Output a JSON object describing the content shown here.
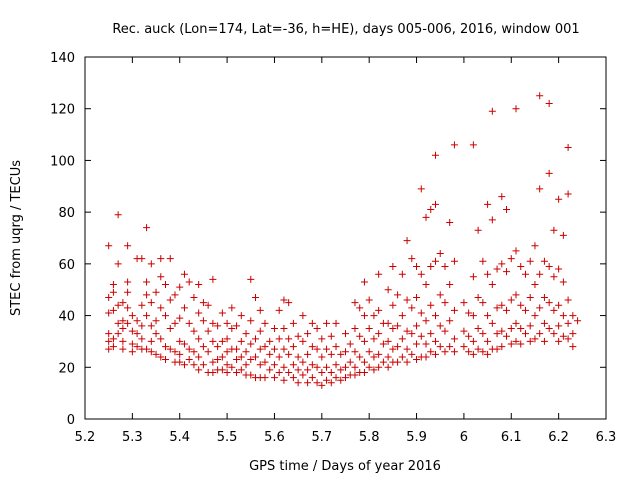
{
  "chart_data": {
    "type": "scatter",
    "title": "Rec. auck (Lon=174, Lat=-36, h=HE), days 005-006, 2016, window 001",
    "xlabel": "GPS time / Days of year 2016",
    "ylabel": "STEC from uqrg / TECUs",
    "xlim": [
      5.2,
      6.3
    ],
    "ylim": [
      0,
      140
    ],
    "xticks": [
      5.2,
      5.3,
      5.4,
      5.5,
      5.6,
      5.7,
      5.8,
      5.9,
      6,
      6.1,
      6.2,
      6.3
    ],
    "yticks": [
      0,
      20,
      40,
      60,
      80,
      100,
      120,
      140
    ],
    "grid": false,
    "marker": "+",
    "color": "#cc0000",
    "points": [
      [
        5.25,
        67
      ],
      [
        5.25,
        47
      ],
      [
        5.25,
        41
      ],
      [
        5.25,
        33
      ],
      [
        5.25,
        30
      ],
      [
        5.25,
        27
      ],
      [
        5.26,
        52
      ],
      [
        5.26,
        49
      ],
      [
        5.26,
        42
      ],
      [
        5.26,
        31
      ],
      [
        5.26,
        28
      ],
      [
        5.27,
        79
      ],
      [
        5.27,
        60
      ],
      [
        5.27,
        44
      ],
      [
        5.27,
        37
      ],
      [
        5.27,
        33
      ],
      [
        5.28,
        45
      ],
      [
        5.28,
        38
      ],
      [
        5.28,
        35
      ],
      [
        5.28,
        30
      ],
      [
        5.28,
        27
      ],
      [
        5.29,
        67
      ],
      [
        5.29,
        53
      ],
      [
        5.29,
        49
      ],
      [
        5.29,
        43
      ],
      [
        5.29,
        37
      ],
      [
        5.3,
        40
      ],
      [
        5.3,
        34
      ],
      [
        5.3,
        29
      ],
      [
        5.3,
        26
      ],
      [
        5.31,
        62
      ],
      [
        5.31,
        38
      ],
      [
        5.31,
        33
      ],
      [
        5.31,
        28
      ],
      [
        5.32,
        62
      ],
      [
        5.32,
        44
      ],
      [
        5.32,
        36
      ],
      [
        5.32,
        31
      ],
      [
        5.32,
        27
      ],
      [
        5.33,
        74
      ],
      [
        5.33,
        53
      ],
      [
        5.33,
        48
      ],
      [
        5.33,
        40
      ],
      [
        5.33,
        27
      ],
      [
        5.34,
        60
      ],
      [
        5.34,
        45
      ],
      [
        5.34,
        36
      ],
      [
        5.34,
        30
      ],
      [
        5.34,
        26
      ],
      [
        5.35,
        49
      ],
      [
        5.35,
        38
      ],
      [
        5.35,
        33
      ],
      [
        5.35,
        25
      ],
      [
        5.36,
        62
      ],
      [
        5.36,
        55
      ],
      [
        5.36,
        43
      ],
      [
        5.36,
        31
      ],
      [
        5.36,
        24
      ],
      [
        5.37,
        52
      ],
      [
        5.37,
        40
      ],
      [
        5.37,
        28
      ],
      [
        5.37,
        23
      ],
      [
        5.38,
        62
      ],
      [
        5.38,
        46
      ],
      [
        5.38,
        35
      ],
      [
        5.38,
        27
      ],
      [
        5.39,
        48
      ],
      [
        5.39,
        37
      ],
      [
        5.39,
        26
      ],
      [
        5.39,
        22
      ],
      [
        5.4,
        51
      ],
      [
        5.4,
        39
      ],
      [
        5.4,
        30
      ],
      [
        5.4,
        25
      ],
      [
        5.4,
        22
      ],
      [
        5.41,
        56
      ],
      [
        5.41,
        43
      ],
      [
        5.41,
        29
      ],
      [
        5.41,
        21
      ],
      [
        5.42,
        53
      ],
      [
        5.42,
        37
      ],
      [
        5.42,
        27
      ],
      [
        5.42,
        23
      ],
      [
        5.43,
        47
      ],
      [
        5.43,
        34
      ],
      [
        5.43,
        26
      ],
      [
        5.43,
        21
      ],
      [
        5.44,
        52
      ],
      [
        5.44,
        41
      ],
      [
        5.44,
        31
      ],
      [
        5.44,
        24
      ],
      [
        5.44,
        19
      ],
      [
        5.45,
        45
      ],
      [
        5.45,
        38
      ],
      [
        5.45,
        28
      ],
      [
        5.45,
        21
      ],
      [
        5.46,
        44
      ],
      [
        5.46,
        34
      ],
      [
        5.46,
        26
      ],
      [
        5.46,
        18
      ],
      [
        5.47,
        54
      ],
      [
        5.47,
        37
      ],
      [
        5.47,
        30
      ],
      [
        5.47,
        22
      ],
      [
        5.47,
        18
      ],
      [
        5.48,
        36
      ],
      [
        5.48,
        28
      ],
      [
        5.48,
        23
      ],
      [
        5.48,
        19
      ],
      [
        5.49,
        41
      ],
      [
        5.49,
        30
      ],
      [
        5.49,
        24
      ],
      [
        5.49,
        19
      ],
      [
        5.5,
        37
      ],
      [
        5.5,
        31
      ],
      [
        5.5,
        26
      ],
      [
        5.5,
        21
      ],
      [
        5.5,
        18
      ],
      [
        5.51,
        43
      ],
      [
        5.51,
        35
      ],
      [
        5.51,
        27
      ],
      [
        5.51,
        20
      ],
      [
        5.52,
        36
      ],
      [
        5.52,
        27
      ],
      [
        5.52,
        23
      ],
      [
        5.52,
        18
      ],
      [
        5.53,
        40
      ],
      [
        5.53,
        30
      ],
      [
        5.53,
        24
      ],
      [
        5.53,
        19
      ],
      [
        5.54,
        33
      ],
      [
        5.54,
        26
      ],
      [
        5.54,
        21
      ],
      [
        5.54,
        17
      ],
      [
        5.55,
        54
      ],
      [
        5.55,
        38
      ],
      [
        5.55,
        29
      ],
      [
        5.55,
        23
      ],
      [
        5.55,
        17
      ],
      [
        5.56,
        47
      ],
      [
        5.56,
        31
      ],
      [
        5.56,
        24
      ],
      [
        5.56,
        16
      ],
      [
        5.57,
        42
      ],
      [
        5.57,
        34
      ],
      [
        5.57,
        27
      ],
      [
        5.57,
        21
      ],
      [
        5.57,
        16
      ],
      [
        5.58,
        37
      ],
      [
        5.58,
        28
      ],
      [
        5.58,
        22
      ],
      [
        5.58,
        16
      ],
      [
        5.59,
        30
      ],
      [
        5.59,
        25
      ],
      [
        5.59,
        19
      ],
      [
        5.6,
        35
      ],
      [
        5.6,
        27
      ],
      [
        5.6,
        21
      ],
      [
        5.6,
        16
      ],
      [
        5.61,
        42
      ],
      [
        5.61,
        31
      ],
      [
        5.61,
        24
      ],
      [
        5.61,
        18
      ],
      [
        5.62,
        46
      ],
      [
        5.62,
        35
      ],
      [
        5.62,
        27
      ],
      [
        5.62,
        20
      ],
      [
        5.62,
        15
      ],
      [
        5.63,
        45
      ],
      [
        5.63,
        31
      ],
      [
        5.63,
        25
      ],
      [
        5.63,
        18
      ],
      [
        5.64,
        37
      ],
      [
        5.64,
        28
      ],
      [
        5.64,
        21
      ],
      [
        5.64,
        16
      ],
      [
        5.65,
        32
      ],
      [
        5.65,
        24
      ],
      [
        5.65,
        19
      ],
      [
        5.65,
        14
      ],
      [
        5.66,
        40
      ],
      [
        5.66,
        30
      ],
      [
        5.66,
        22
      ],
      [
        5.66,
        17
      ],
      [
        5.67,
        33
      ],
      [
        5.67,
        25
      ],
      [
        5.67,
        19
      ],
      [
        5.67,
        14
      ],
      [
        5.68,
        37
      ],
      [
        5.68,
        28
      ],
      [
        5.68,
        21
      ],
      [
        5.68,
        16
      ],
      [
        5.69,
        35
      ],
      [
        5.69,
        27
      ],
      [
        5.69,
        20
      ],
      [
        5.69,
        14
      ],
      [
        5.7,
        31
      ],
      [
        5.7,
        24
      ],
      [
        5.7,
        18
      ],
      [
        5.7,
        13
      ],
      [
        5.71,
        37
      ],
      [
        5.71,
        27
      ],
      [
        5.71,
        20
      ],
      [
        5.71,
        15
      ],
      [
        5.72,
        32
      ],
      [
        5.72,
        25
      ],
      [
        5.72,
        18
      ],
      [
        5.72,
        14
      ],
      [
        5.73,
        37
      ],
      [
        5.73,
        28
      ],
      [
        5.73,
        21
      ],
      [
        5.73,
        16
      ],
      [
        5.74,
        25
      ],
      [
        5.74,
        19
      ],
      [
        5.74,
        15
      ],
      [
        5.75,
        33
      ],
      [
        5.75,
        26
      ],
      [
        5.75,
        20
      ],
      [
        5.75,
        16
      ],
      [
        5.76,
        29
      ],
      [
        5.76,
        22
      ],
      [
        5.76,
        17
      ],
      [
        5.77,
        45
      ],
      [
        5.77,
        35
      ],
      [
        5.77,
        26
      ],
      [
        5.77,
        20
      ],
      [
        5.77,
        17
      ],
      [
        5.78,
        43
      ],
      [
        5.78,
        32
      ],
      [
        5.78,
        24
      ],
      [
        5.78,
        18
      ],
      [
        5.79,
        53
      ],
      [
        5.79,
        40
      ],
      [
        5.79,
        30
      ],
      [
        5.79,
        22
      ],
      [
        5.79,
        18
      ],
      [
        5.8,
        46
      ],
      [
        5.8,
        35
      ],
      [
        5.8,
        26
      ],
      [
        5.8,
        20
      ],
      [
        5.81,
        40
      ],
      [
        5.81,
        31
      ],
      [
        5.81,
        24
      ],
      [
        5.81,
        19
      ],
      [
        5.82,
        56
      ],
      [
        5.82,
        42
      ],
      [
        5.82,
        33
      ],
      [
        5.82,
        25
      ],
      [
        5.82,
        20
      ],
      [
        5.83,
        37
      ],
      [
        5.83,
        29
      ],
      [
        5.83,
        22
      ],
      [
        5.84,
        50
      ],
      [
        5.84,
        37
      ],
      [
        5.84,
        30
      ],
      [
        5.84,
        24
      ],
      [
        5.84,
        20
      ],
      [
        5.85,
        59
      ],
      [
        5.85,
        44
      ],
      [
        5.85,
        35
      ],
      [
        5.85,
        27
      ],
      [
        5.85,
        22
      ],
      [
        5.86,
        48
      ],
      [
        5.86,
        36
      ],
      [
        5.86,
        28
      ],
      [
        5.86,
        22
      ],
      [
        5.87,
        56
      ],
      [
        5.87,
        40
      ],
      [
        5.87,
        31
      ],
      [
        5.87,
        24
      ],
      [
        5.88,
        69
      ],
      [
        5.88,
        46
      ],
      [
        5.88,
        34
      ],
      [
        5.88,
        27
      ],
      [
        5.88,
        22
      ],
      [
        5.89,
        62
      ],
      [
        5.89,
        43
      ],
      [
        5.89,
        33
      ],
      [
        5.89,
        25
      ],
      [
        5.9,
        59
      ],
      [
        5.9,
        47
      ],
      [
        5.9,
        36
      ],
      [
        5.9,
        29
      ],
      [
        5.9,
        23
      ],
      [
        5.91,
        89
      ],
      [
        5.91,
        56
      ],
      [
        5.91,
        41
      ],
      [
        5.91,
        32
      ],
      [
        5.91,
        24
      ],
      [
        5.92,
        78
      ],
      [
        5.92,
        52
      ],
      [
        5.92,
        38
      ],
      [
        5.92,
        29
      ],
      [
        5.92,
        24
      ],
      [
        5.93,
        81
      ],
      [
        5.93,
        59
      ],
      [
        5.93,
        44
      ],
      [
        5.93,
        33
      ],
      [
        5.93,
        26
      ],
      [
        5.94,
        102
      ],
      [
        5.94,
        83
      ],
      [
        5.94,
        61
      ],
      [
        5.94,
        40
      ],
      [
        5.94,
        30
      ],
      [
        5.94,
        25
      ],
      [
        5.95,
        64
      ],
      [
        5.95,
        48
      ],
      [
        5.95,
        36
      ],
      [
        5.95,
        28
      ],
      [
        5.96,
        59
      ],
      [
        5.96,
        45
      ],
      [
        5.96,
        34
      ],
      [
        5.96,
        26
      ],
      [
        5.97,
        76
      ],
      [
        5.97,
        52
      ],
      [
        5.97,
        38
      ],
      [
        5.97,
        28
      ],
      [
        5.98,
        106
      ],
      [
        5.98,
        61
      ],
      [
        5.98,
        42
      ],
      [
        5.98,
        31
      ],
      [
        5.98,
        26
      ],
      [
        6.0,
        45
      ],
      [
        6.0,
        34
      ],
      [
        6.0,
        28
      ],
      [
        6.01,
        41
      ],
      [
        6.01,
        32
      ],
      [
        6.01,
        26
      ],
      [
        6.02,
        106
      ],
      [
        6.02,
        55
      ],
      [
        6.02,
        40
      ],
      [
        6.02,
        30
      ],
      [
        6.02,
        25
      ],
      [
        6.03,
        73
      ],
      [
        6.03,
        47
      ],
      [
        6.03,
        35
      ],
      [
        6.03,
        27
      ],
      [
        6.04,
        61
      ],
      [
        6.04,
        45
      ],
      [
        6.04,
        33
      ],
      [
        6.04,
        26
      ],
      [
        6.05,
        83
      ],
      [
        6.05,
        56
      ],
      [
        6.05,
        40
      ],
      [
        6.05,
        30
      ],
      [
        6.05,
        25
      ],
      [
        6.06,
        119
      ],
      [
        6.06,
        77
      ],
      [
        6.06,
        52
      ],
      [
        6.06,
        37
      ],
      [
        6.06,
        27
      ],
      [
        6.07,
        58
      ],
      [
        6.07,
        43
      ],
      [
        6.07,
        33
      ],
      [
        6.07,
        27
      ],
      [
        6.08,
        86
      ],
      [
        6.08,
        60
      ],
      [
        6.08,
        44
      ],
      [
        6.08,
        34
      ],
      [
        6.08,
        28
      ],
      [
        6.09,
        81
      ],
      [
        6.09,
        57
      ],
      [
        6.09,
        42
      ],
      [
        6.09,
        32
      ],
      [
        6.1,
        62
      ],
      [
        6.1,
        46
      ],
      [
        6.1,
        35
      ],
      [
        6.1,
        29
      ],
      [
        6.11,
        120
      ],
      [
        6.11,
        65
      ],
      [
        6.11,
        48
      ],
      [
        6.11,
        37
      ],
      [
        6.11,
        30
      ],
      [
        6.12,
        59
      ],
      [
        6.12,
        44
      ],
      [
        6.12,
        35
      ],
      [
        6.12,
        29
      ],
      [
        6.13,
        56
      ],
      [
        6.13,
        42
      ],
      [
        6.13,
        33
      ],
      [
        6.14,
        61
      ],
      [
        6.14,
        47
      ],
      [
        6.14,
        36
      ],
      [
        6.14,
        30
      ],
      [
        6.15,
        67
      ],
      [
        6.15,
        52
      ],
      [
        6.15,
        40
      ],
      [
        6.15,
        31
      ],
      [
        6.16,
        125
      ],
      [
        6.16,
        89
      ],
      [
        6.16,
        56
      ],
      [
        6.16,
        43
      ],
      [
        6.16,
        33
      ],
      [
        6.17,
        61
      ],
      [
        6.17,
        47
      ],
      [
        6.17,
        37
      ],
      [
        6.17,
        30
      ],
      [
        6.18,
        122
      ],
      [
        6.18,
        95
      ],
      [
        6.18,
        59
      ],
      [
        6.18,
        45
      ],
      [
        6.18,
        35
      ],
      [
        6.19,
        73
      ],
      [
        6.19,
        55
      ],
      [
        6.19,
        42
      ],
      [
        6.19,
        33
      ],
      [
        6.2,
        85
      ],
      [
        6.2,
        58
      ],
      [
        6.2,
        44
      ],
      [
        6.2,
        36
      ],
      [
        6.2,
        30
      ],
      [
        6.21,
        71
      ],
      [
        6.21,
        53
      ],
      [
        6.21,
        40
      ],
      [
        6.21,
        32
      ],
      [
        6.22,
        105
      ],
      [
        6.22,
        87
      ],
      [
        6.22,
        46
      ],
      [
        6.22,
        37
      ],
      [
        6.22,
        31
      ],
      [
        6.23,
        40
      ],
      [
        6.23,
        33
      ],
      [
        6.23,
        28
      ],
      [
        6.24,
        38
      ]
    ]
  }
}
